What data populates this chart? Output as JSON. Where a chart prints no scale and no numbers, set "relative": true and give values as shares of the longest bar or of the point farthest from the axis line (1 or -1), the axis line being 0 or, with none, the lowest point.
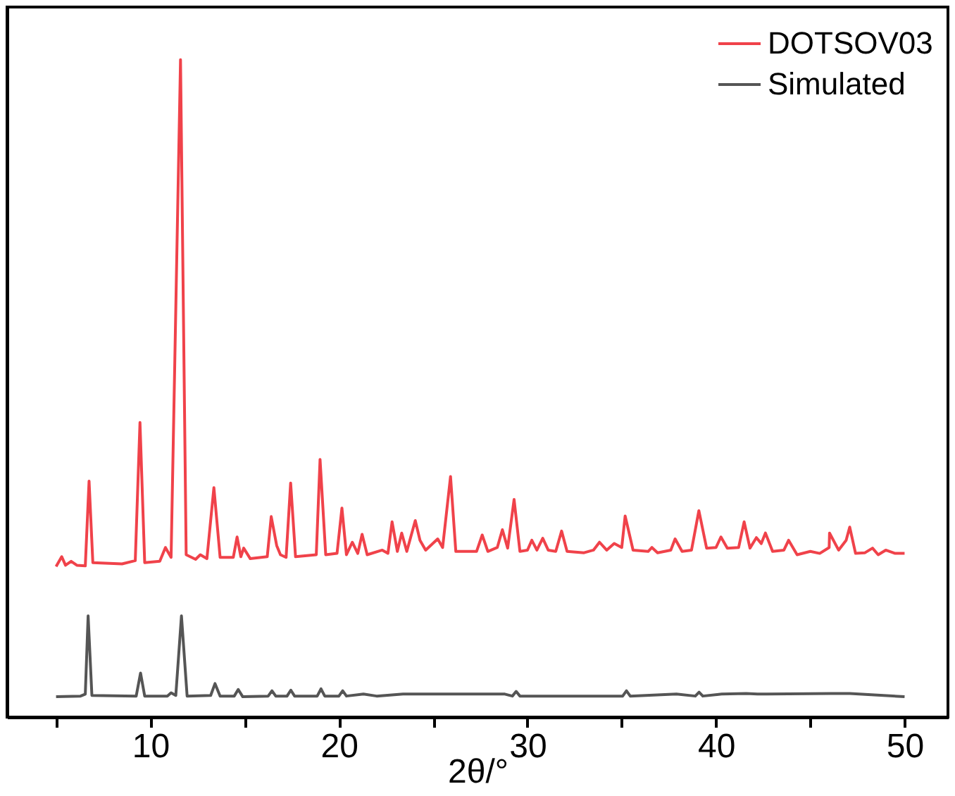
{
  "chart_data": {
    "type": "line",
    "xlabel": "2θ/°",
    "relative": true,
    "legend": "top right",
    "grid": false,
    "tick_labels": "x",
    "xlim": [
      2.4,
      52.3
    ],
    "xticks": [
      {
        "value": 5,
        "label": null
      },
      10,
      {
        "value": 15,
        "label": null
      },
      20,
      {
        "value": 25,
        "label": null
      },
      30,
      {
        "value": 35,
        "label": null
      },
      40,
      {
        "value": 45,
        "label": null
      },
      50
    ],
    "series": [
      {
        "name": "DOTSOV03",
        "color": "#f0424a",
        "x": [
          5.0,
          5.3,
          5.5,
          5.8,
          6.1,
          6.55,
          6.75,
          6.95,
          8.5,
          9.2,
          9.45,
          9.7,
          10.5,
          10.8,
          11.1,
          11.6,
          11.9,
          12.4,
          12.65,
          13.0,
          13.37,
          13.7,
          14.4,
          14.6,
          14.8,
          14.95,
          15.3,
          16.2,
          16.41,
          16.7,
          16.9,
          17.2,
          17.44,
          17.7,
          18.8,
          19.0,
          19.3,
          19.9,
          20.16,
          20.4,
          20.71,
          21.0,
          21.23,
          21.5,
          22.3,
          22.6,
          22.82,
          23.1,
          23.33,
          23.6,
          24.05,
          24.3,
          24.6,
          25.24,
          25.5,
          25.92,
          26.2,
          27.3,
          27.6,
          27.9,
          28.4,
          28.67,
          28.95,
          29.29,
          29.6,
          30.0,
          30.23,
          30.5,
          30.81,
          31.1,
          31.5,
          31.81,
          32.1,
          33.0,
          33.5,
          33.82,
          34.2,
          34.6,
          35.0,
          35.18,
          35.6,
          36.4,
          36.6,
          36.9,
          37.6,
          37.83,
          38.2,
          38.7,
          39.09,
          39.5,
          40.0,
          40.26,
          40.6,
          41.2,
          41.49,
          41.8,
          42.14,
          42.4,
          42.62,
          43.0,
          43.6,
          43.85,
          44.3,
          45.0,
          45.5,
          46.0,
          46.02,
          46.5,
          46.9,
          47.09,
          47.4,
          47.9,
          48.3,
          48.6,
          49.0,
          49.5,
          50.0
        ],
        "values": [
          0.229,
          0.244,
          0.231,
          0.237,
          0.231,
          0.23,
          0.359,
          0.235,
          0.233,
          0.238,
          0.448,
          0.235,
          0.237,
          0.258,
          0.243,
          1.0,
          0.247,
          0.24,
          0.247,
          0.241,
          0.349,
          0.243,
          0.243,
          0.274,
          0.244,
          0.257,
          0.241,
          0.244,
          0.305,
          0.261,
          0.247,
          0.243,
          0.356,
          0.244,
          0.247,
          0.392,
          0.247,
          0.249,
          0.318,
          0.247,
          0.266,
          0.249,
          0.278,
          0.247,
          0.254,
          0.249,
          0.297,
          0.252,
          0.28,
          0.252,
          0.299,
          0.269,
          0.254,
          0.271,
          0.258,
          0.366,
          0.252,
          0.252,
          0.277,
          0.252,
          0.258,
          0.285,
          0.257,
          0.331,
          0.252,
          0.254,
          0.269,
          0.254,
          0.272,
          0.254,
          0.252,
          0.283,
          0.252,
          0.25,
          0.254,
          0.266,
          0.254,
          0.264,
          0.258,
          0.306,
          0.254,
          0.252,
          0.258,
          0.25,
          0.254,
          0.271,
          0.252,
          0.254,
          0.314,
          0.257,
          0.258,
          0.274,
          0.257,
          0.258,
          0.297,
          0.257,
          0.273,
          0.264,
          0.28,
          0.252,
          0.254,
          0.269,
          0.247,
          0.252,
          0.249,
          0.258,
          0.28,
          0.254,
          0.269,
          0.289,
          0.249,
          0.25,
          0.257,
          0.247,
          0.254,
          0.249,
          0.249
        ]
      },
      {
        "name": "Simulated",
        "color": "#555555",
        "x": [
          5.0,
          6.3,
          6.55,
          6.7,
          6.9,
          9.25,
          9.48,
          9.7,
          10.9,
          11.1,
          11.35,
          11.65,
          11.95,
          13.2,
          13.43,
          13.7,
          14.45,
          14.66,
          14.9,
          16.25,
          16.45,
          16.65,
          17.25,
          17.45,
          17.65,
          18.85,
          19.05,
          19.25,
          20.0,
          20.2,
          20.4,
          21.3,
          22.0,
          23.4,
          24.0,
          26.0,
          27.7,
          28.8,
          29.2,
          29.4,
          29.6,
          35.05,
          35.25,
          35.45,
          37.9,
          38.9,
          39.1,
          39.3,
          40.3,
          41.6,
          42.2,
          42.7,
          46.1,
          47.1,
          50.0
        ],
        "values": [
          0.031,
          0.032,
          0.035,
          0.154,
          0.033,
          0.032,
          0.067,
          0.032,
          0.032,
          0.037,
          0.033,
          0.154,
          0.032,
          0.033,
          0.051,
          0.032,
          0.032,
          0.042,
          0.031,
          0.032,
          0.04,
          0.032,
          0.032,
          0.041,
          0.032,
          0.032,
          0.043,
          0.032,
          0.032,
          0.04,
          0.032,
          0.035,
          0.032,
          0.035,
          0.035,
          0.035,
          0.035,
          0.035,
          0.032,
          0.039,
          0.032,
          0.032,
          0.04,
          0.032,
          0.035,
          0.032,
          0.038,
          0.032,
          0.035,
          0.036,
          0.035,
          0.035,
          0.036,
          0.036,
          0.031
        ]
      }
    ]
  }
}
